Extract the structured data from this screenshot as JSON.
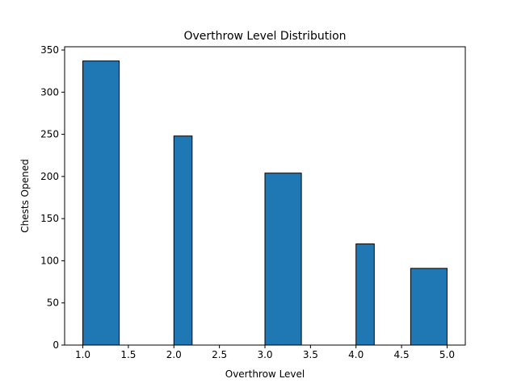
{
  "chart_data": {
    "type": "bar",
    "title": "Overthrow Level Distribution",
    "xlabel": "Overthrow Level",
    "ylabel": "Chests Opened",
    "xlim": [
      0.8,
      5.2
    ],
    "ylim": [
      0,
      353.85
    ],
    "xticks": [
      "1.0",
      "1.5",
      "2.0",
      "2.5",
      "3.0",
      "3.5",
      "4.0",
      "4.5",
      "5.0"
    ],
    "yticks": [
      "0",
      "50",
      "100",
      "150",
      "200",
      "250",
      "300",
      "350"
    ],
    "bins": [
      {
        "x0": 1.0,
        "x1": 1.4,
        "value": 337
      },
      {
        "x0": 2.0,
        "x1": 2.2,
        "value": 248
      },
      {
        "x0": 3.0,
        "x1": 3.4,
        "value": 204
      },
      {
        "x0": 4.0,
        "x1": 4.2,
        "value": 120
      },
      {
        "x0": 4.6,
        "x1": 5.0,
        "value": 91
      }
    ],
    "bar_color": "#1f77b4",
    "edge_color": "#000000",
    "grid": false,
    "legend": false
  }
}
